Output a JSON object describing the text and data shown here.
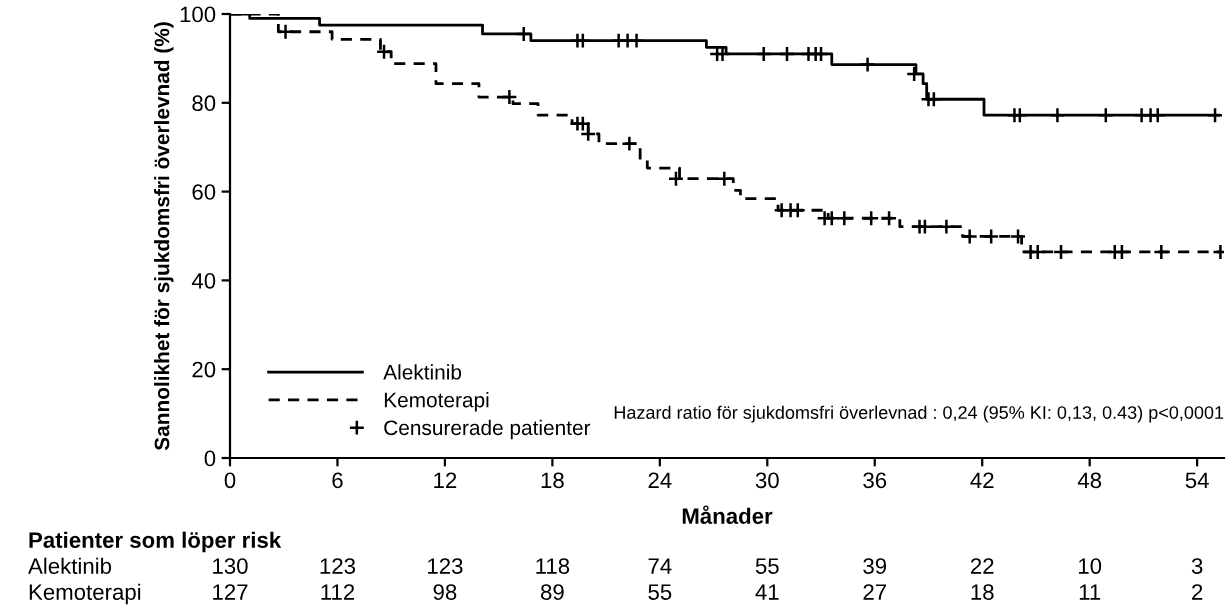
{
  "chart_data": {
    "type": "step",
    "xlabel": "Månader",
    "ylabel": "Sannolikhet för sjukdomsfri överlevnad (%)",
    "xlim": [
      0,
      55.5
    ],
    "xticks": [
      0,
      6,
      12,
      18,
      24,
      30,
      36,
      42,
      48,
      54
    ],
    "ylim": [
      0,
      100
    ],
    "yticks": [
      0,
      20,
      40,
      60,
      80,
      100
    ],
    "grid": false,
    "legend": "bottom left",
    "series": [
      {
        "name": "Alektinib",
        "color": "#000000",
        "line_style": "solid",
        "x": [
          0,
          1.1,
          5.0,
          14.1,
          16.8,
          26.6,
          27.7,
          33.6,
          38.3,
          38.7,
          38.9,
          42.1,
          55.2
        ],
        "values": [
          100,
          99,
          97.5,
          95.5,
          94,
          92.5,
          91,
          88.6,
          86.5,
          84.3,
          80.8,
          77.2,
          77.2
        ]
      },
      {
        "name": "Kemoterapi",
        "color": "#000000",
        "line_style": "dashed",
        "x": [
          0,
          2.7,
          5.7,
          8.4,
          9.0,
          11.5,
          13.9,
          15.8,
          17.2,
          19.1,
          20.0,
          20.6,
          22.9,
          23.3,
          25.1,
          28.1,
          28.5,
          30.6,
          33.4,
          37.4,
          40.9,
          44.2,
          55.3
        ],
        "values": [
          100,
          96,
          94.3,
          91.5,
          88.8,
          84.3,
          81.3,
          79.8,
          77.2,
          75.3,
          73,
          70.8,
          67,
          65.3,
          62.9,
          60.3,
          58.4,
          55.8,
          54,
          52.1,
          49.9,
          46.4,
          46.4
        ]
      },
      {
        "name": "Censurerade patienter",
        "type": "scatter",
        "color": "#000000",
        "marker": "cross",
        "x": [
          16.4,
          19.4,
          19.7,
          21.7,
          22.2,
          22.7,
          27.2,
          27.5,
          29.8,
          31.1,
          32.3,
          32.7,
          33.0,
          35.6,
          38.2,
          39.0,
          39.3,
          43.8,
          44.1,
          46.2,
          48.9,
          50.9,
          51.4,
          51.8,
          55.0,
          3.1,
          8.6,
          15.6,
          19.4,
          19.7,
          20.0,
          22.3,
          24.9,
          27.6,
          30.8,
          31.3,
          31.7,
          33.2,
          33.6,
          34.3,
          35.8,
          36.8,
          38.5,
          38.8,
          40.0,
          41.3,
          42.5,
          44.0,
          44.7,
          45.1,
          46.4,
          49.4,
          49.8,
          52.0,
          55.3
        ],
        "values": [
          95.5,
          94,
          94,
          94,
          94,
          94,
          91,
          91,
          91,
          91,
          91,
          91,
          91,
          88.6,
          86.5,
          80.8,
          80.8,
          77.2,
          77.2,
          77.2,
          77.2,
          77.2,
          77.2,
          77.2,
          77.2,
          96,
          91.5,
          81.3,
          75.3,
          75.3,
          73,
          70.8,
          62.9,
          62.9,
          55.8,
          55.8,
          55.8,
          54,
          54,
          54,
          54,
          54,
          52.1,
          52.1,
          52.1,
          49.9,
          49.9,
          49.9,
          46.4,
          46.4,
          46.4,
          46.4,
          46.4,
          46.4,
          46.4
        ]
      }
    ],
    "annotations": [
      "Hazard ratio för sjukdomsfri överlevnad : 0,24 (95% KI: 0,13, 0.43) p<0,0001",
      "Patienter som löper risk",
      "Alektinib",
      "130",
      "123",
      "123",
      "118",
      "74",
      "55",
      "39",
      "22",
      "10",
      "3",
      "Kemoterapi",
      "127",
      "112",
      "98",
      "89",
      "55",
      "41",
      "27",
      "18",
      "11",
      "2"
    ]
  }
}
